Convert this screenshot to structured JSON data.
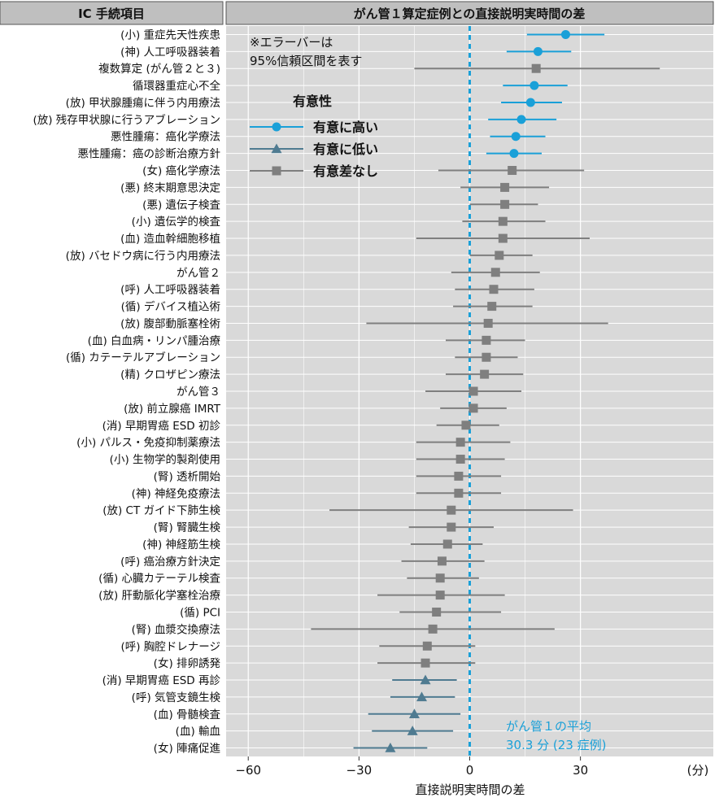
{
  "left_header": "IC 手続項目",
  "chart_data": {
    "type": "forest",
    "title": "がん管１算定症例との直接説明実時間の差",
    "xlabel": "直接説明実時間の差",
    "xunit": "(分)",
    "xlim": [
      -66,
      66
    ],
    "xticks": [
      -60,
      -30,
      0,
      30
    ],
    "xtick_labels": [
      "−60",
      "−30",
      "0",
      "30"
    ],
    "reference_line": 0,
    "reference_label_1": "がん管１の平均",
    "reference_label_2": "30.3 分 (23 症例)",
    "note_1": "※エラーバーは",
    "note_2": "95%信頼区間を表す",
    "legend": {
      "title": "有意性",
      "items": [
        {
          "label": "有意に高い",
          "color": "#1aa0d8",
          "marker": "circle"
        },
        {
          "label": "有意に低い",
          "color": "#4f7b91",
          "marker": "triangle"
        },
        {
          "label": "有意差なし",
          "color": "#7f7f7f",
          "marker": "square"
        }
      ]
    },
    "colors": {
      "high": "#1aa0d8",
      "low": "#4f7b91",
      "ns": "#7f7f7f",
      "panel": "#d9d9d9"
    },
    "rows": [
      {
        "label": "(小) 重症先天性疾患",
        "est": 26,
        "lo": 15.5,
        "hi": 36.5,
        "sig": "high"
      },
      {
        "label": "(神) 人工呼吸器装着",
        "est": 18.5,
        "lo": 10,
        "hi": 27.5,
        "sig": "high"
      },
      {
        "label": "複数算定 (がん管２と３)",
        "est": 18,
        "lo": -15,
        "hi": 51.5,
        "sig": "ns"
      },
      {
        "label": "循環器重症心不全",
        "est": 17.5,
        "lo": 9,
        "hi": 26.5,
        "sig": "high"
      },
      {
        "label": "(放) 甲状腺腫瘍に伴う内用療法",
        "est": 16.5,
        "lo": 8.5,
        "hi": 25,
        "sig": "high"
      },
      {
        "label": "(放) 残存甲状腺に行うアブレーション",
        "est": 14,
        "lo": 5,
        "hi": 23.5,
        "sig": "high"
      },
      {
        "label": "悪性腫瘍：癌化学療法",
        "est": 12.5,
        "lo": 5.5,
        "hi": 20.5,
        "sig": "high"
      },
      {
        "label": "悪性腫瘍：癌の診断治療方針",
        "est": 12,
        "lo": 4.5,
        "hi": 19.5,
        "sig": "high"
      },
      {
        "label": "(女) 癌化学療法",
        "est": 11.5,
        "lo": -8.5,
        "hi": 31,
        "sig": "ns"
      },
      {
        "label": "(悪) 終末期意思決定",
        "est": 9.5,
        "lo": -2.5,
        "hi": 21.5,
        "sig": "ns"
      },
      {
        "label": "(悪) 遺伝子検査",
        "est": 9.5,
        "lo": 0,
        "hi": 18.5,
        "sig": "ns"
      },
      {
        "label": "(小) 遺伝学的検査",
        "est": 9,
        "lo": -2,
        "hi": 20.5,
        "sig": "ns"
      },
      {
        "label": "(血) 造血幹細胞移植",
        "est": 9,
        "lo": -14.5,
        "hi": 32.5,
        "sig": "ns"
      },
      {
        "label": "(放) バセドウ病に行う内用療法",
        "est": 8,
        "lo": 0,
        "hi": 17,
        "sig": "ns"
      },
      {
        "label": "がん管２",
        "est": 7,
        "lo": -5,
        "hi": 19,
        "sig": "ns"
      },
      {
        "label": "(呼) 人工呼吸器装着",
        "est": 6.5,
        "lo": -4,
        "hi": 17.5,
        "sig": "ns"
      },
      {
        "label": "(循) デバイス植込術",
        "est": 6,
        "lo": -4.5,
        "hi": 17,
        "sig": "ns"
      },
      {
        "label": "(放) 腹部動脈塞栓術",
        "est": 5,
        "lo": -28,
        "hi": 37.5,
        "sig": "ns"
      },
      {
        "label": "(血) 白血病・リンパ腫治療",
        "est": 4.5,
        "lo": -6.5,
        "hi": 15,
        "sig": "ns"
      },
      {
        "label": "(循) カテーテルアブレーション",
        "est": 4.5,
        "lo": -4,
        "hi": 13,
        "sig": "ns"
      },
      {
        "label": "(精) クロザピン療法",
        "est": 4,
        "lo": -6.5,
        "hi": 14.5,
        "sig": "ns"
      },
      {
        "label": "がん管３",
        "est": 1,
        "lo": -12,
        "hi": 14,
        "sig": "ns"
      },
      {
        "label": "(放) 前立腺癌 IMRT",
        "est": 1,
        "lo": -8,
        "hi": 10,
        "sig": "ns"
      },
      {
        "label": "(消) 早期胃癌 ESD 初診",
        "est": -1,
        "lo": -9,
        "hi": 8,
        "sig": "ns"
      },
      {
        "label": "(小) パルス・免疫抑制薬療法",
        "est": -2.5,
        "lo": -14.5,
        "hi": 11,
        "sig": "ns"
      },
      {
        "label": "(小) 生物学的製剤使用",
        "est": -2.5,
        "lo": -14.5,
        "hi": 9.5,
        "sig": "ns"
      },
      {
        "label": "(腎) 透析開始",
        "est": -3,
        "lo": -14.5,
        "hi": 8.5,
        "sig": "ns"
      },
      {
        "label": "(神) 神経免疫療法",
        "est": -3,
        "lo": -14.5,
        "hi": 8.5,
        "sig": "ns"
      },
      {
        "label": "(放) CT ガイド下肺生検",
        "est": -5,
        "lo": -38,
        "hi": 28,
        "sig": "ns"
      },
      {
        "label": "(腎) 腎臓生検",
        "est": -5,
        "lo": -16.5,
        "hi": 6.5,
        "sig": "ns"
      },
      {
        "label": "(神) 神経筋生検",
        "est": -6,
        "lo": -16,
        "hi": 3.5,
        "sig": "ns"
      },
      {
        "label": "(呼) 癌治療方針決定",
        "est": -7.5,
        "lo": -18.5,
        "hi": 4,
        "sig": "ns"
      },
      {
        "label": "(循) 心臓カテーテル検査",
        "est": -8,
        "lo": -17,
        "hi": 2.5,
        "sig": "ns"
      },
      {
        "label": "(放) 肝動脈化学塞栓治療",
        "est": -8,
        "lo": -25,
        "hi": 9.5,
        "sig": "ns"
      },
      {
        "label": "(循) PCI",
        "est": -9,
        "lo": -19,
        "hi": 8.5,
        "sig": "ns"
      },
      {
        "label": "(腎) 血漿交換療法",
        "est": -10,
        "lo": -43,
        "hi": 23,
        "sig": "ns"
      },
      {
        "label": "(呼) 胸腔ドレナージ",
        "est": -11.5,
        "lo": -24.5,
        "hi": 1.5,
        "sig": "ns"
      },
      {
        "label": "(女) 排卵誘発",
        "est": -12,
        "lo": -25,
        "hi": 1.5,
        "sig": "ns"
      },
      {
        "label": "(消) 早期胃癌 ESD 再診",
        "est": -12,
        "lo": -21,
        "hi": -3.5,
        "sig": "low"
      },
      {
        "label": "(呼) 気管支鏡生検",
        "est": -13,
        "lo": -21.5,
        "hi": -4,
        "sig": "low"
      },
      {
        "label": "(血) 骨髄検査",
        "est": -15,
        "lo": -27.5,
        "hi": -2.5,
        "sig": "low"
      },
      {
        "label": "(血) 輸血",
        "est": -15.5,
        "lo": -26.5,
        "hi": -4.5,
        "sig": "low"
      },
      {
        "label": "(女) 陣痛促進",
        "est": -21.5,
        "lo": -31.5,
        "hi": -11.5,
        "sig": "low"
      }
    ]
  }
}
